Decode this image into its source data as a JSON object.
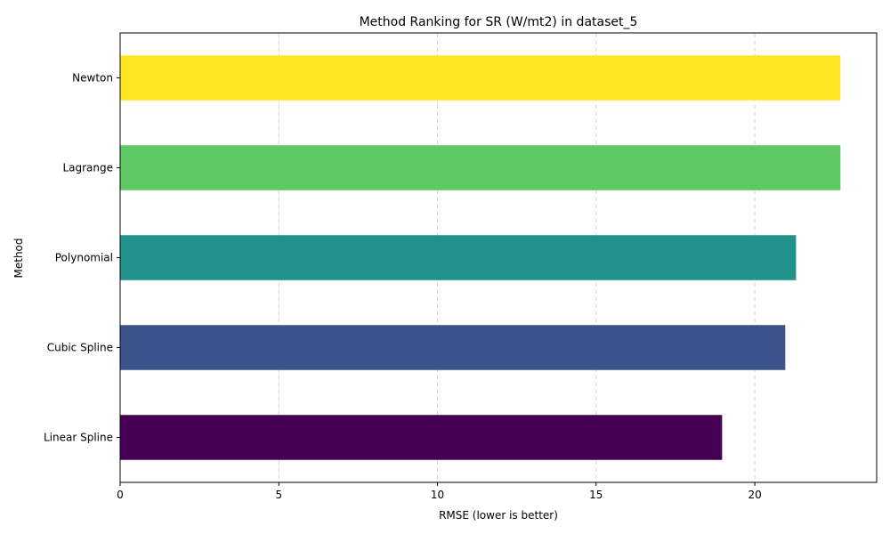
{
  "chart_data": {
    "type": "bar",
    "orientation": "horizontal",
    "title": "Method Ranking for SR (W/mt2) in dataset_5",
    "xlabel": "RMSE (lower is better)",
    "ylabel": "Method",
    "categories": [
      "Linear Spline",
      "Cubic Spline",
      "Polynomial",
      "Lagrange",
      "Newton"
    ],
    "values": [
      18.97,
      20.96,
      21.3,
      22.7,
      22.7
    ],
    "colors": [
      "#440154",
      "#3b528b",
      "#21918c",
      "#5ec962",
      "#fde725"
    ],
    "xlim": [
      0,
      23.84
    ],
    "xticks": [
      0,
      5,
      10,
      15,
      20
    ],
    "grid": "x-dashed",
    "legend": "none"
  }
}
